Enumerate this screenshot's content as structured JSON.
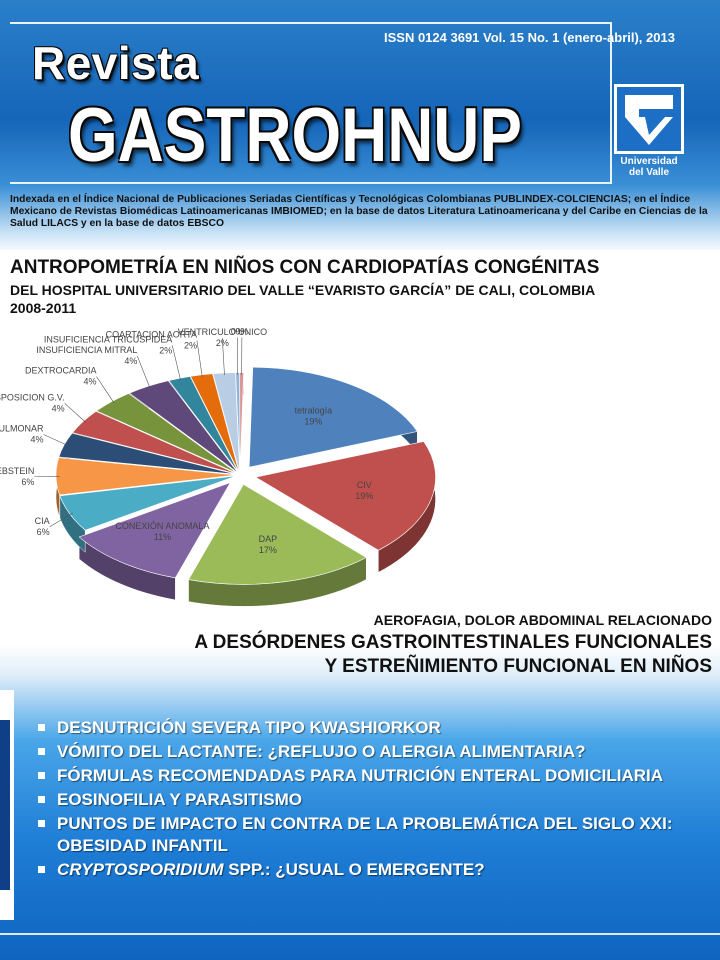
{
  "header": {
    "issn": "ISSN 0124 3691 Vol. 15 No. 1 (enero-abril), 2013",
    "revista": "Revista",
    "title": "GASTROHNUP",
    "logo_text_1": "Universidad",
    "logo_text_2": "del Valle"
  },
  "index_text": "Indexada en el Índice Nacional de Publicaciones Seriadas Científicas y Tecnológicas Colombianas PUBLINDEX-COLCIENCIAS; en el Índice Mexicano de Revistas Biomédicas Latinoamericanas IMBIOMED; en la base de datos Literatura Latinoamericana y del Caribe en Ciencias de la Salud LILACS y en la base de datos EBSCO",
  "article1": {
    "line1": "ANTROPOMETRÍA EN NIÑOS CON CARDIOPATÍAS CONGÉNITAS",
    "line2": "DEL HOSPITAL UNIVERSITARIO DEL VALLE “EVARISTO GARCÍA” DE CALI, COLOMBIA",
    "line3": "2008-2011"
  },
  "chart_data": {
    "type": "pie",
    "slices": [
      {
        "label": "tetralogía",
        "display": "19%",
        "value": 19,
        "color": "#4f81bd"
      },
      {
        "label": "CIV",
        "display": "19%",
        "value": 19,
        "color": "#c0504d"
      },
      {
        "label": "DAP",
        "display": "17%",
        "value": 17,
        "color": "#9bbb59"
      },
      {
        "label": "CONEXIÓN ANOMALA",
        "display": "11%",
        "value": 11,
        "color": "#8064a2"
      },
      {
        "label": "CIA",
        "display": "6%",
        "value": 6,
        "color": "#4bacc6"
      },
      {
        "label": "EBSTEIN",
        "display": "6%",
        "value": 6,
        "color": "#f79646"
      },
      {
        "label": "ESTENOSIS PULMONAR",
        "display": "4%",
        "value": 4,
        "color": "#2c4d75"
      },
      {
        "label": "TRANSPOSICION G.V.",
        "display": "4%",
        "value": 4,
        "color": "#c0504d"
      },
      {
        "label": "DEXTROCARDIA",
        "display": "4%",
        "value": 4,
        "color": "#77933c"
      },
      {
        "label": "INSUFICIENCIA MITRAL",
        "display": "4%",
        "value": 4,
        "color": "#5f497a"
      },
      {
        "label": "INSUFICIENCIA TRICUSPIDEA",
        "display": "2%",
        "value": 2,
        "color": "#31859c"
      },
      {
        "label": "COARTACION AORTA",
        "display": "2%",
        "value": 2,
        "color": "#e46c0a"
      },
      {
        "label": "VENTRICULO UNICO",
        "display": "2%",
        "value": 2,
        "color": "#b9cde5"
      },
      {
        "label": "",
        "display": "0%",
        "value": 0,
        "color": "#95b3d7"
      },
      {
        "label": "",
        "display": "0%",
        "value": 0,
        "color": "#d99694"
      }
    ]
  },
  "article2": {
    "line1": "AEROFAGIA, DOLOR ABDOMINAL RELACIONADO",
    "line2": "A DESÓRDENES GASTROINTESTINALES FUNCIONALES",
    "line3": "Y ESTREÑIMIENTO FUNCIONAL EN NIÑOS"
  },
  "bullets": [
    {
      "text": "DESNUTRICIÓN SEVERA TIPO KWASHIORKOR"
    },
    {
      "text": "VÓMITO DEL LACTANTE: ¿REFLUJO O ALERGIA ALIMENTARIA?"
    },
    {
      "text": "FÓRMULAS RECOMENDADAS PARA NUTRICIÓN ENTERAL DOMICILIARIA"
    },
    {
      "text": "EOSINOFILIA Y PARASITISMO"
    },
    {
      "text": "PUNTOS DE IMPACTO EN CONTRA DE LA PROBLEMÁTICA DEL SIGLO XXI: OBESIDAD INFANTIL"
    },
    {
      "italic": "CRYPTOSPORIDIUM",
      "text": " SPP.: ¿USUAL O EMERGENTE?"
    }
  ]
}
